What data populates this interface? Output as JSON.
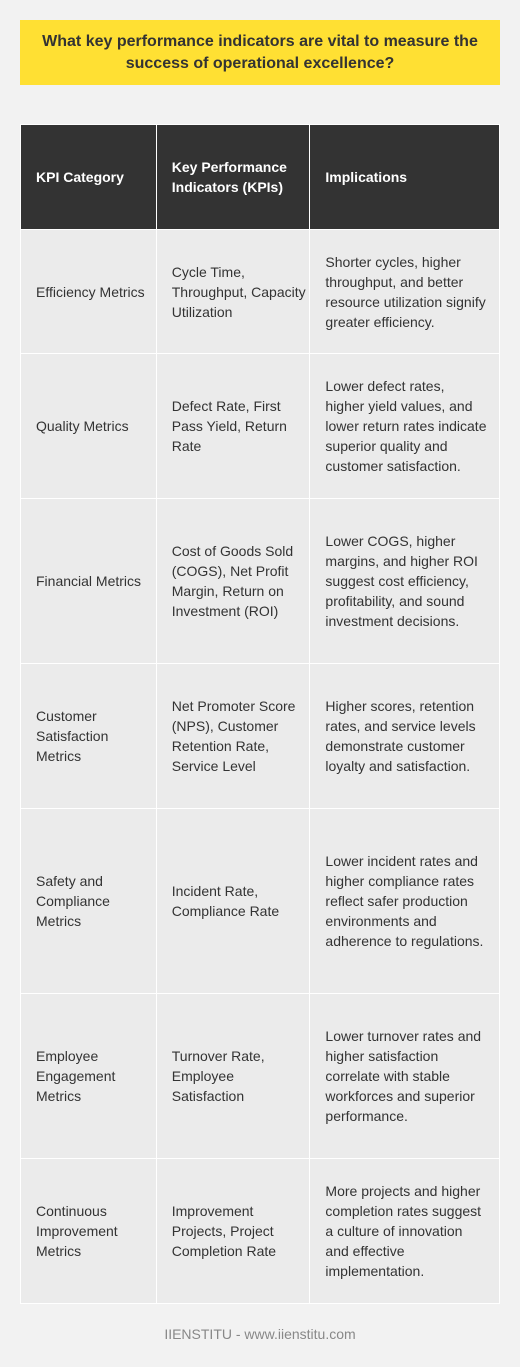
{
  "title": "What key performance indicators are vital to measure the success of operational excellence?",
  "table": {
    "headers": [
      "KPI Category",
      "Key Performance Indicators (KPIs)",
      "Implications"
    ],
    "rows": [
      {
        "category": "Efficiency Metrics",
        "kpis": "Cycle Time, Throughput, Capacity Utilization",
        "implications": "Shorter cycles, higher throughput, and better resource utilization signify greater efficiency."
      },
      {
        "category": "Quality Metrics",
        "kpis": "Defect Rate, First Pass Yield, Return Rate",
        "implications": "Lower defect rates, higher yield values, and lower return rates indicate superior quality and customer satisfaction."
      },
      {
        "category": "Financial Metrics",
        "kpis": "Cost of Goods Sold (COGS), Net Profit Margin, Return on Investment (ROI)",
        "implications": "Lower COGS, higher margins, and higher ROI suggest cost efficiency, profitability, and sound investment decisions."
      },
      {
        "category": "Customer Satisfaction Metrics",
        "kpis": "Net Promoter Score (NPS), Customer Retention Rate, Service Level",
        "implications": "Higher scores, retention rates, and service levels demonstrate customer loyalty and satisfaction."
      },
      {
        "category": "Safety and Compliance Metrics",
        "kpis": "Incident Rate, Compliance Rate",
        "implications": "Lower incident rates and higher compliance rates reflect safer production environments and adherence to regulations."
      },
      {
        "category": "Employee Engagement Metrics",
        "kpis": "Turnover Rate, Employee Satisfaction",
        "implications": "Lower turnover rates and higher satisfaction correlate with stable workforces and superior performance."
      },
      {
        "category": "Continuous Improvement Metrics",
        "kpis": "Improvement Projects, Project Completion Rate",
        "implications": "More projects and higher completion rates suggest a culture of innovation and effective implementation."
      }
    ]
  },
  "footer": "IIENSTITU - www.iienstitu.com",
  "colors": {
    "title_background": "#ffe033",
    "header_background": "#333333",
    "cell_background": "#ebebeb",
    "page_background": "#f2f2f2"
  }
}
